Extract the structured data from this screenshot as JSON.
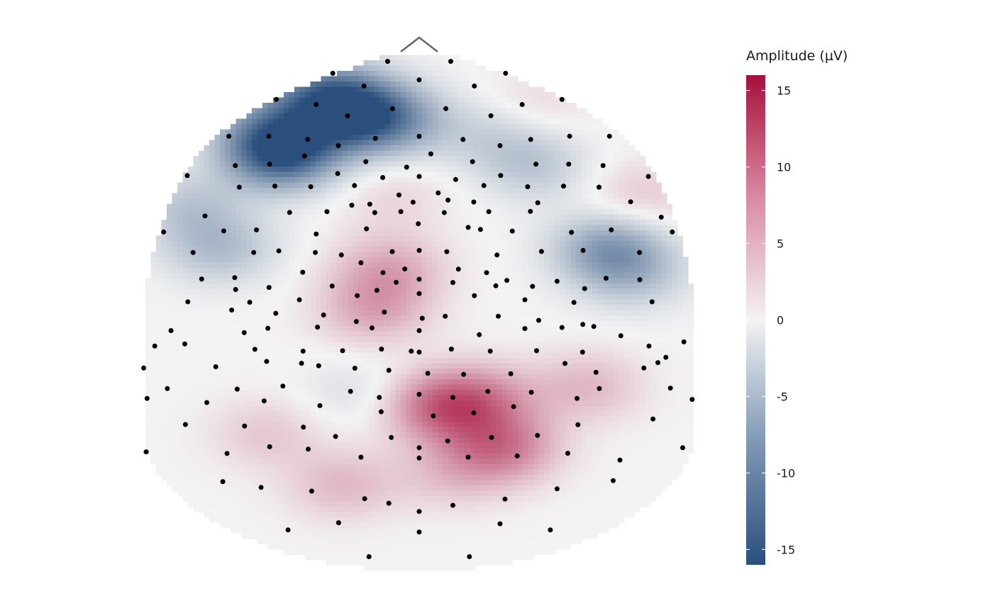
{
  "chart_data": {
    "type": "heatmap",
    "subtype": "scalp-topography",
    "title": "",
    "xlabel": "",
    "ylabel": "",
    "legend": {
      "title": "Amplitude (µV)",
      "placement": "right",
      "ticks": [
        15,
        10,
        5,
        0,
        -5,
        -10,
        -15
      ],
      "tick_labels": [
        "15",
        "10",
        "5",
        "0",
        "-5",
        "-10",
        "-15"
      ],
      "range": [
        -16,
        16
      ]
    },
    "colors": {
      "negative": "#2a4f7d",
      "neutral": "#f3f3f3",
      "positive": "#a7103d",
      "electrode": "#000000",
      "nose": "#666666"
    },
    "grid": false,
    "sources": [
      {
        "x": -0.45,
        "y": 0.82,
        "amp": -16
      },
      {
        "x": -0.21,
        "y": 1.0,
        "amp": -12
      },
      {
        "x": -0.07,
        "y": 0.97,
        "amp": -6
      },
      {
        "x": -0.31,
        "y": 1.1,
        "amp": -9
      },
      {
        "x": -0.5,
        "y": 0.95,
        "amp": -4
      },
      {
        "x": -0.75,
        "y": 0.55,
        "amp": -4
      },
      {
        "x": -0.65,
        "y": 0.35,
        "amp": -5
      },
      {
        "x": 0.38,
        "y": 0.75,
        "amp": -4
      },
      {
        "x": 0.24,
        "y": 0.9,
        "amp": -3
      },
      {
        "x": 0.62,
        "y": 0.35,
        "amp": -8
      },
      {
        "x": 0.7,
        "y": 0.22,
        "amp": -4
      },
      {
        "x": -0.08,
        "y": 0.6,
        "amp": 2
      },
      {
        "x": 0.72,
        "y": 0.6,
        "amp": 3
      },
      {
        "x": 0.38,
        "y": 1.05,
        "amp": 2
      },
      {
        "x": -0.1,
        "y": 0.25,
        "amp": 5
      },
      {
        "x": -0.15,
        "y": 0.05,
        "amp": 5
      },
      {
        "x": 0.07,
        "y": -0.42,
        "amp": 9
      },
      {
        "x": 0.27,
        "y": -0.62,
        "amp": 8
      },
      {
        "x": 0.22,
        "y": -0.38,
        "amp": 5
      },
      {
        "x": 0.55,
        "y": -0.32,
        "amp": 4
      },
      {
        "x": -0.5,
        "y": -0.55,
        "amp": 3
      },
      {
        "x": -0.25,
        "y": -0.8,
        "amp": 4
      },
      {
        "x": 0.1,
        "y": -0.75,
        "amp": 3
      },
      {
        "x": -0.2,
        "y": -0.35,
        "amp": -2
      },
      {
        "x": -0.8,
        "y": -0.2,
        "amp": 0
      },
      {
        "x": 0.8,
        "y": -0.2,
        "amp": 0
      }
    ],
    "electrodes": [
      [
        -0.103,
        1.26
      ],
      [
        0.103,
        1.26
      ],
      [
        -0.282,
        1.202
      ],
      [
        0.282,
        1.202
      ],
      [
        0.0,
        1.17
      ],
      [
        -0.18,
        1.14
      ],
      [
        0.18,
        1.14
      ],
      [
        -0.466,
        1.075
      ],
      [
        -0.336,
        1.05
      ],
      [
        0.336,
        1.05
      ],
      [
        0.466,
        1.075
      ],
      [
        -0.087,
        1.03
      ],
      [
        0.087,
        1.03
      ],
      [
        -0.234,
        0.995
      ],
      [
        0.234,
        0.995
      ],
      [
        -0.621,
        0.896
      ],
      [
        -0.491,
        0.896
      ],
      [
        -0.364,
        0.88
      ],
      [
        -0.143,
        0.885
      ],
      [
        0.0,
        0.895
      ],
      [
        0.143,
        0.88
      ],
      [
        0.364,
        0.88
      ],
      [
        0.491,
        0.896
      ],
      [
        0.621,
        0.896
      ],
      [
        -0.264,
        0.85
      ],
      [
        0.264,
        0.85
      ],
      [
        -0.374,
        0.8
      ],
      [
        -0.6,
        0.753
      ],
      [
        -0.488,
        0.76
      ],
      [
        -0.174,
        0.772
      ],
      [
        0.174,
        0.772
      ],
      [
        0.038,
        0.81
      ],
      [
        -0.041,
        0.745
      ],
      [
        0.381,
        0.76
      ],
      [
        0.488,
        0.76
      ],
      [
        0.6,
        0.753
      ],
      [
        -0.757,
        0.704
      ],
      [
        -0.266,
        0.714
      ],
      [
        -0.119,
        0.695
      ],
      [
        0.0,
        0.7
      ],
      [
        0.119,
        0.685
      ],
      [
        0.266,
        0.705
      ],
      [
        0.748,
        0.7
      ],
      [
        -0.587,
        0.648
      ],
      [
        -0.471,
        0.653
      ],
      [
        -0.354,
        0.65
      ],
      [
        -0.211,
        0.656
      ],
      [
        -0.066,
        0.61
      ],
      [
        0.062,
        0.62
      ],
      [
        0.211,
        0.656
      ],
      [
        0.354,
        0.65
      ],
      [
        0.471,
        0.653
      ],
      [
        0.587,
        0.648
      ],
      [
        -0.22,
        0.56
      ],
      [
        -0.161,
        0.565
      ],
      [
        -0.02,
        0.575
      ],
      [
        0.094,
        0.585
      ],
      [
        0.178,
        0.576
      ],
      [
        0.387,
        0.572
      ],
      [
        0.69,
        0.577
      ],
      [
        -0.699,
        0.508
      ],
      [
        -0.423,
        0.525
      ],
      [
        -0.301,
        0.529
      ],
      [
        -0.145,
        0.524
      ],
      [
        -0.06,
        0.529
      ],
      [
        0.082,
        0.524
      ],
      [
        0.227,
        0.529
      ],
      [
        0.363,
        0.53
      ],
      [
        0.79,
        0.502
      ],
      [
        -0.834,
        0.43
      ],
      [
        -0.638,
        0.435
      ],
      [
        -0.531,
        0.44
      ],
      [
        -0.336,
        0.42
      ],
      [
        -0.172,
        0.445
      ],
      [
        -0.003,
        0.47
      ],
      [
        0.16,
        0.452
      ],
      [
        0.2,
        0.442
      ],
      [
        0.304,
        0.434
      ],
      [
        0.497,
        0.428
      ],
      [
        0.627,
        0.44
      ],
      [
        0.826,
        0.43
      ],
      [
        -0.738,
        0.33
      ],
      [
        -0.54,
        0.33
      ],
      [
        -0.458,
        0.338
      ],
      [
        -0.339,
        0.33
      ],
      [
        -0.254,
        0.318
      ],
      [
        -0.088,
        0.334
      ],
      [
        0.0,
        0.34
      ],
      [
        0.09,
        0.334
      ],
      [
        0.254,
        0.318
      ],
      [
        0.399,
        0.335
      ],
      [
        0.535,
        0.34
      ],
      [
        0.719,
        0.33
      ],
      [
        -0.71,
        0.201
      ],
      [
        -0.602,
        0.208
      ],
      [
        -0.38,
        0.234
      ],
      [
        -0.19,
        0.28
      ],
      [
        -0.118,
        0.232
      ],
      [
        -0.047,
        0.25
      ],
      [
        0.128,
        0.249
      ],
      [
        0.22,
        0.232
      ],
      [
        0.286,
        0.194
      ],
      [
        0.45,
        0.19
      ],
      [
        0.61,
        0.205
      ],
      [
        0.72,
        0.198
      ],
      [
        -0.599,
        0.15
      ],
      [
        -0.49,
        0.16
      ],
      [
        -0.284,
        0.167
      ],
      [
        -0.138,
        0.146
      ],
      [
        -0.075,
        0.185
      ],
      [
        0.0,
        0.2
      ],
      [
        0.11,
        0.184
      ],
      [
        0.25,
        0.168
      ],
      [
        0.37,
        0.165
      ],
      [
        0.54,
        0.154
      ],
      [
        -0.755,
        0.09
      ],
      [
        -0.553,
        0.088
      ],
      [
        -0.391,
        0.1
      ],
      [
        -0.202,
        0.12
      ],
      [
        0.0,
        0.13
      ],
      [
        0.18,
        0.12
      ],
      [
        0.345,
        0.1
      ],
      [
        0.505,
        0.087
      ],
      [
        0.76,
        0.09
      ],
      [
        -0.612,
        0.05
      ],
      [
        -0.468,
        0.034
      ],
      [
        -0.312,
        0.026
      ],
      [
        -0.205,
        -0.006
      ],
      [
        -0.114,
        0.04
      ],
      [
        0.01,
        0.01
      ],
      [
        0.085,
        0.02
      ],
      [
        0.258,
        0.02
      ],
      [
        0.39,
        0.0
      ],
      [
        0.534,
        -0.02
      ],
      [
        -0.81,
        -0.05
      ],
      [
        -0.571,
        -0.06
      ],
      [
        -0.494,
        -0.039
      ],
      [
        -0.332,
        -0.033
      ],
      [
        -0.154,
        -0.037
      ],
      [
        0.0,
        -0.05
      ],
      [
        0.196,
        -0.07
      ],
      [
        0.345,
        -0.04
      ],
      [
        0.466,
        -0.035
      ],
      [
        0.57,
        -0.03
      ],
      [
        0.658,
        -0.075
      ],
      [
        -0.863,
        -0.125
      ],
      [
        -0.765,
        -0.115
      ],
      [
        -0.536,
        -0.141
      ],
      [
        -0.379,
        -0.15
      ],
      [
        -0.25,
        -0.148
      ],
      [
        -0.123,
        -0.14
      ],
      [
        -0.026,
        -0.15
      ],
      [
        0.0,
        -0.155
      ],
      [
        0.105,
        -0.14
      ],
      [
        0.232,
        -0.15
      ],
      [
        0.383,
        -0.148
      ],
      [
        0.533,
        -0.155
      ],
      [
        0.75,
        -0.125
      ],
      [
        0.805,
        -0.18
      ],
      [
        0.864,
        -0.105
      ],
      [
        -0.899,
        -0.232
      ],
      [
        -0.664,
        -0.226
      ],
      [
        -0.498,
        -0.2
      ],
      [
        -0.384,
        -0.209
      ],
      [
        -0.328,
        -0.221
      ],
      [
        -0.21,
        -0.233
      ],
      [
        -0.099,
        -0.243
      ],
      [
        0.028,
        -0.258
      ],
      [
        0.145,
        -0.263
      ],
      [
        0.299,
        -0.26
      ],
      [
        0.476,
        -0.21
      ],
      [
        0.577,
        -0.253
      ],
      [
        0.733,
        -0.232
      ],
      [
        0.779,
        -0.206
      ],
      [
        -0.822,
        -0.332
      ],
      [
        -0.594,
        -0.335
      ],
      [
        -0.445,
        -0.32
      ],
      [
        -0.224,
        -0.346
      ],
      [
        -0.13,
        -0.375
      ],
      [
        0.0,
        -0.36
      ],
      [
        0.11,
        -0.375
      ],
      [
        0.224,
        -0.346
      ],
      [
        0.366,
        -0.35
      ],
      [
        0.588,
        -0.332
      ],
      [
        0.82,
        -0.33
      ],
      [
        -0.888,
        -0.38
      ],
      [
        -0.693,
        -0.4
      ],
      [
        -0.506,
        -0.392
      ],
      [
        -0.324,
        -0.415
      ],
      [
        -0.124,
        -0.445
      ],
      [
        0.046,
        -0.465
      ],
      [
        0.178,
        -0.45
      ],
      [
        0.308,
        -0.42
      ],
      [
        0.515,
        -0.38
      ],
      [
        0.891,
        -0.385
      ],
      [
        -0.763,
        -0.507
      ],
      [
        -0.57,
        -0.514
      ],
      [
        -0.378,
        -0.52
      ],
      [
        -0.273,
        -0.565
      ],
      [
        -0.091,
        -0.57
      ],
      [
        0.0,
        -0.62
      ],
      [
        0.093,
        -0.587
      ],
      [
        0.236,
        -0.57
      ],
      [
        0.386,
        -0.56
      ],
      [
        0.518,
        -0.508
      ],
      [
        0.763,
        -0.48
      ],
      [
        -0.891,
        -0.64
      ],
      [
        -0.627,
        -0.648
      ],
      [
        -0.488,
        -0.615
      ],
      [
        -0.362,
        -0.627
      ],
      [
        -0.19,
        -0.666
      ],
      [
        0.0,
        -0.67
      ],
      [
        0.16,
        -0.666
      ],
      [
        0.32,
        -0.66
      ],
      [
        0.485,
        -0.647
      ],
      [
        0.655,
        -0.68
      ],
      [
        0.86,
        -0.62
      ],
      [
        -0.641,
        -0.785
      ],
      [
        -0.516,
        -0.813
      ],
      [
        -0.351,
        -0.831
      ],
      [
        -0.178,
        -0.868
      ],
      [
        -0.099,
        -0.89
      ],
      [
        0.0,
        -0.93
      ],
      [
        0.11,
        -0.9
      ],
      [
        0.28,
        -0.87
      ],
      [
        0.45,
        -0.82
      ],
      [
        0.633,
        -0.78
      ],
      [
        -0.428,
        -1.02
      ],
      [
        -0.263,
        -0.985
      ],
      [
        0.0,
        -1.03
      ],
      [
        0.264,
        -0.99
      ],
      [
        0.428,
        -1.02
      ],
      [
        -0.164,
        -1.15
      ],
      [
        0.164,
        -1.15
      ]
    ]
  }
}
